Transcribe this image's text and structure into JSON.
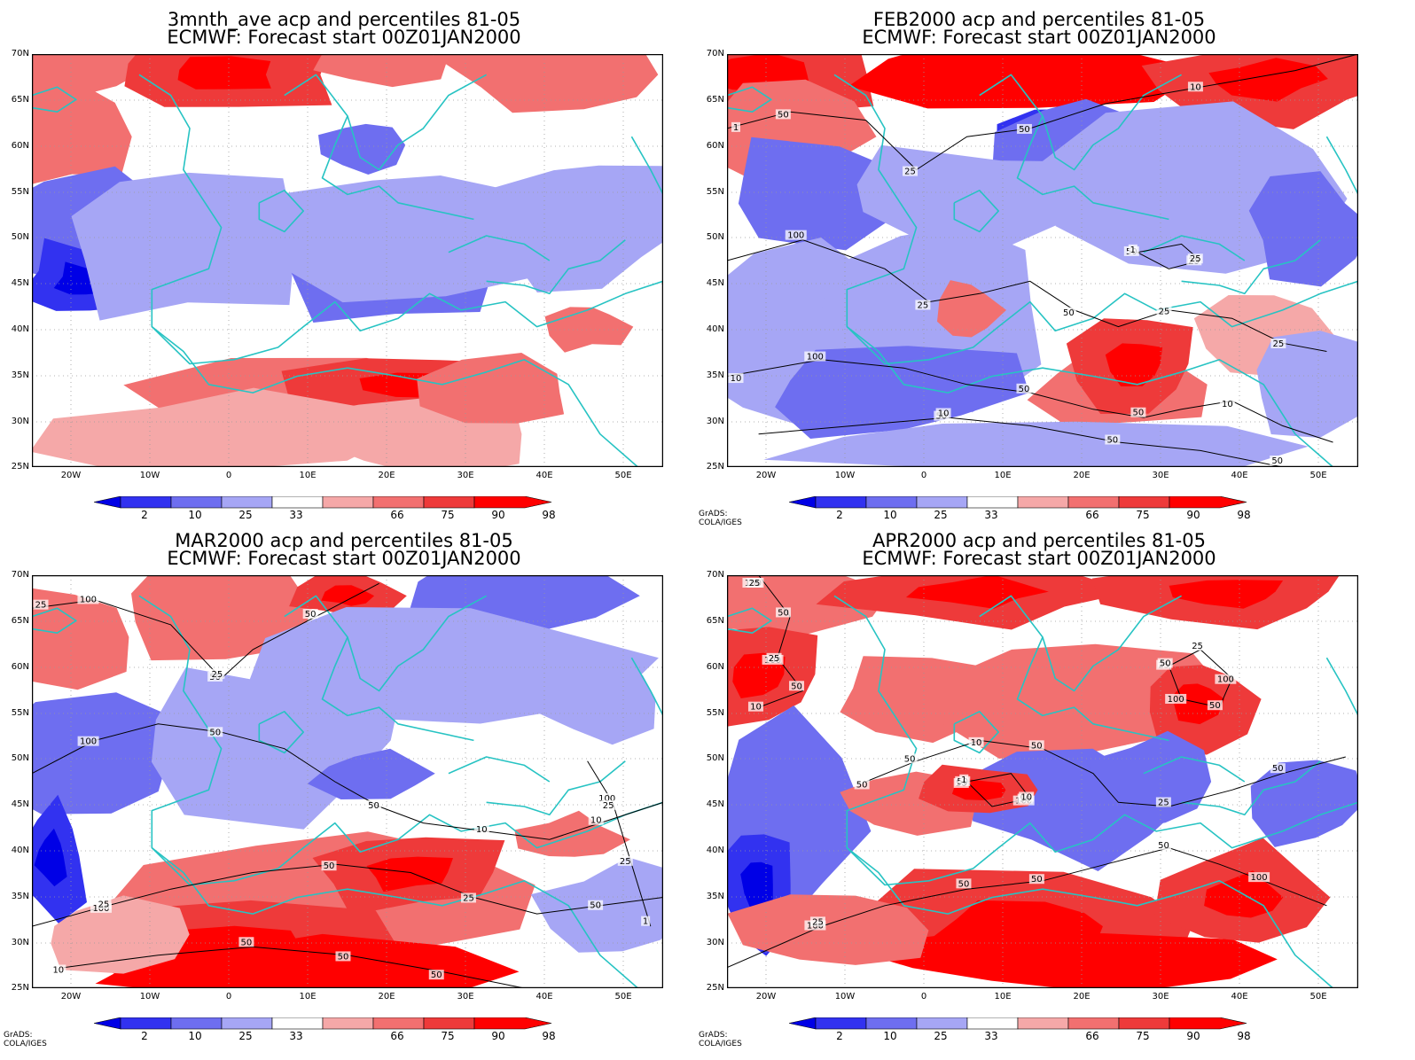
{
  "panels": [
    {
      "title1": "3mnth_ave acp and percentiles 81-05",
      "title2": "ECMWF: Forecast start 00Z01JAN2000",
      "credit": ""
    },
    {
      "title1": "FEB2000 acp and percentiles 81-05",
      "title2": "ECMWF: Forecast start 00Z01JAN2000",
      "credit": "GrADS: COLA/IGES"
    },
    {
      "title1": "MAR2000 acp and percentiles 81-05",
      "title2": "ECMWF: Forecast start 00Z01JAN2000",
      "credit": "GrADS: COLA/IGES"
    },
    {
      "title1": "APR2000 acp and percentiles 81-05",
      "title2": "ECMWF: Forecast start 00Z01JAN2000",
      "credit": "GrADS: COLA/IGES"
    }
  ],
  "lat_labels": [
    "70N",
    "65N",
    "60N",
    "55N",
    "50N",
    "45N",
    "40N",
    "35N",
    "30N",
    "25N"
  ],
  "lon_labels": [
    "20W",
    "10W",
    "0",
    "10E",
    "20E",
    "30E",
    "40E",
    "50E"
  ],
  "colorbar": {
    "labels": [
      "2",
      "10",
      "25",
      "33",
      "66",
      "75",
      "90",
      "98"
    ],
    "colors": [
      "#0000e6",
      "#3232f0",
      "#6e6ef0",
      "#a6a6f5",
      "#ffffff",
      "#f5a8a8",
      "#f27070",
      "#ee3a3a",
      "#ff0000"
    ]
  },
  "contour_labels": [
    [],
    [
      "50",
      "100",
      "100",
      "50",
      "25",
      "25",
      "25",
      "50",
      "50",
      "50",
      "50",
      "50",
      "50",
      "50",
      "25",
      "10",
      "25",
      "10",
      "10",
      "1",
      "1",
      "25",
      "10"
    ],
    [
      "100",
      "100",
      "100",
      "50",
      "25",
      "50",
      "50",
      "50",
      "50",
      "100",
      "50",
      "50",
      "25",
      "10",
      "1",
      "25",
      "10",
      "50",
      "50",
      "25",
      "25",
      "10",
      "25"
    ],
    [
      "50",
      "50",
      "100",
      "100",
      "100",
      "50",
      "50",
      "50",
      "100",
      "50",
      "100",
      "25",
      "50",
      "25",
      "50",
      "100",
      "50",
      "100",
      "50",
      "50",
      "25",
      "50",
      "25",
      "50",
      "10",
      "25",
      "10",
      "50",
      "25",
      "1",
      "10"
    ]
  ],
  "colors": {
    "coastline": "#27c3c3",
    "contour": "#000000",
    "grid": "#9a9a9a"
  }
}
